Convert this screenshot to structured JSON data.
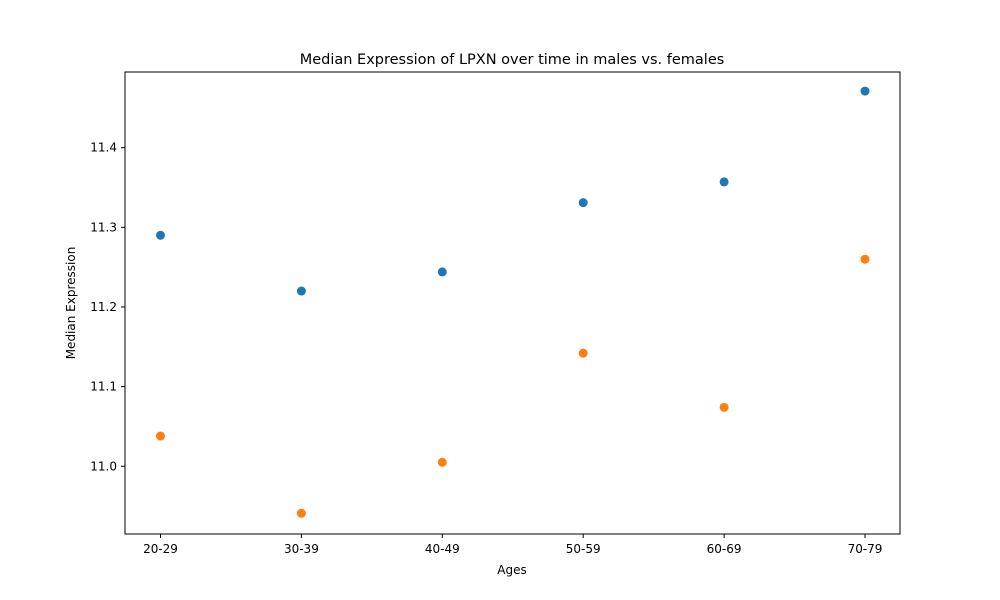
{
  "chart_data": {
    "type": "scatter",
    "title": "Median Expression of LPXN over time in males vs. females",
    "xlabel": "Ages",
    "ylabel": "Median Expression",
    "categories": [
      "20-29",
      "30-39",
      "40-49",
      "50-59",
      "60-69",
      "70-79"
    ],
    "ylim": [
      10.915,
      11.495
    ],
    "yticks": [
      "11.0",
      "11.1",
      "11.2",
      "11.3",
      "11.4"
    ],
    "grid": false,
    "series": [
      {
        "color": "#1f77b4",
        "values": [
          11.29,
          11.22,
          11.244,
          11.331,
          11.357,
          11.471
        ]
      },
      {
        "color": "#ff7f0e",
        "values": [
          11.038,
          10.941,
          11.005,
          11.142,
          11.074,
          11.26
        ]
      }
    ]
  }
}
